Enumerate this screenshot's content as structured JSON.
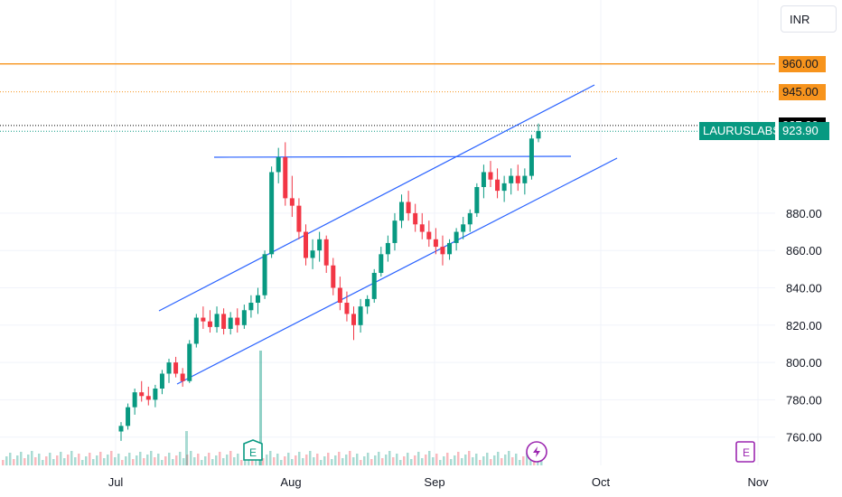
{
  "currency": "INR",
  "symbol": "LAURUSLABS",
  "price_tags": [
    {
      "label": "960.00",
      "bg": "#f7941d",
      "fg": "#131722"
    },
    {
      "label": "945.00",
      "bg": "#f7941d",
      "fg": "#131722"
    },
    {
      "label": "927.00",
      "bg": "#000000",
      "fg": "#ffffff"
    },
    {
      "label": "923.90",
      "bg": "#089981",
      "fg": "#ffffff"
    }
  ],
  "chart_data": {
    "type": "candlestick",
    "y_ticks": [
      760,
      780,
      800,
      820,
      840,
      860,
      880
    ],
    "x_ticks": [
      "Jul",
      "Aug",
      "Sep",
      "Oct",
      "Nov"
    ],
    "ylim": [
      748,
      982
    ],
    "colors": {
      "up": "#089981",
      "down": "#f23645",
      "trendline": "#2962ff",
      "level": "#f7941d"
    },
    "horizontal_levels": [
      {
        "value": 960,
        "style": "solid",
        "color": "#f7941d"
      },
      {
        "value": 945,
        "style": "dotted",
        "color": "#f7941d"
      },
      {
        "value": 927,
        "style": "dotted",
        "color": "#000000"
      },
      {
        "value": 923.9,
        "style": "dotted",
        "color": "#089981"
      }
    ],
    "markers": [
      "earnings-icon",
      "dividend-icon",
      "earnings-upcoming-icon"
    ],
    "candles": [
      [
        763,
        768,
        758,
        766
      ],
      [
        766,
        778,
        764,
        776
      ],
      [
        776,
        786,
        772,
        784
      ],
      [
        784,
        790,
        779,
        782
      ],
      [
        782,
        787,
        777,
        780
      ],
      [
        780,
        788,
        776,
        786
      ],
      [
        786,
        796,
        783,
        794
      ],
      [
        794,
        802,
        789,
        800
      ],
      [
        800,
        803,
        792,
        794
      ],
      [
        794,
        797,
        787,
        790
      ],
      [
        790,
        812,
        789,
        810
      ],
      [
        810,
        826,
        808,
        824
      ],
      [
        824,
        830,
        818,
        822
      ],
      [
        822,
        828,
        816,
        819
      ],
      [
        819,
        830,
        816,
        826
      ],
      [
        826,
        829,
        815,
        818
      ],
      [
        818,
        827,
        815,
        824
      ],
      [
        824,
        829,
        816,
        820
      ],
      [
        820,
        831,
        818,
        828
      ],
      [
        828,
        836,
        824,
        832
      ],
      [
        832,
        840,
        826,
        836
      ],
      [
        836,
        860,
        834,
        858
      ],
      [
        858,
        905,
        856,
        902
      ],
      [
        902,
        915,
        896,
        910
      ],
      [
        910,
        918,
        884,
        888
      ],
      [
        888,
        900,
        878,
        884
      ],
      [
        884,
        888,
        866,
        870
      ],
      [
        870,
        874,
        852,
        856
      ],
      [
        856,
        866,
        850,
        860
      ],
      [
        860,
        870,
        854,
        866
      ],
      [
        866,
        868,
        848,
        852
      ],
      [
        852,
        856,
        836,
        840
      ],
      [
        840,
        846,
        828,
        832
      ],
      [
        832,
        838,
        822,
        826
      ],
      [
        826,
        830,
        812,
        820
      ],
      [
        820,
        834,
        816,
        830
      ],
      [
        830,
        836,
        826,
        834
      ],
      [
        834,
        850,
        832,
        848
      ],
      [
        848,
        862,
        846,
        858
      ],
      [
        858,
        868,
        854,
        864
      ],
      [
        864,
        880,
        860,
        876
      ],
      [
        876,
        890,
        872,
        886
      ],
      [
        886,
        892,
        876,
        880
      ],
      [
        880,
        885,
        870,
        874
      ],
      [
        874,
        880,
        866,
        870
      ],
      [
        870,
        876,
        862,
        866
      ],
      [
        866,
        872,
        858,
        862
      ],
      [
        862,
        868,
        852,
        858
      ],
      [
        858,
        866,
        855,
        864
      ],
      [
        864,
        872,
        860,
        870
      ],
      [
        870,
        878,
        866,
        874
      ],
      [
        874,
        882,
        870,
        880
      ],
      [
        880,
        896,
        878,
        894
      ],
      [
        894,
        906,
        888,
        902
      ],
      [
        902,
        908,
        894,
        898
      ],
      [
        898,
        904,
        888,
        892
      ],
      [
        892,
        900,
        886,
        896
      ],
      [
        896,
        904,
        890,
        900
      ],
      [
        900,
        906,
        892,
        896
      ],
      [
        896,
        904,
        890,
        900
      ],
      [
        900,
        922,
        898,
        920
      ],
      [
        920,
        928,
        918,
        924
      ]
    ]
  }
}
